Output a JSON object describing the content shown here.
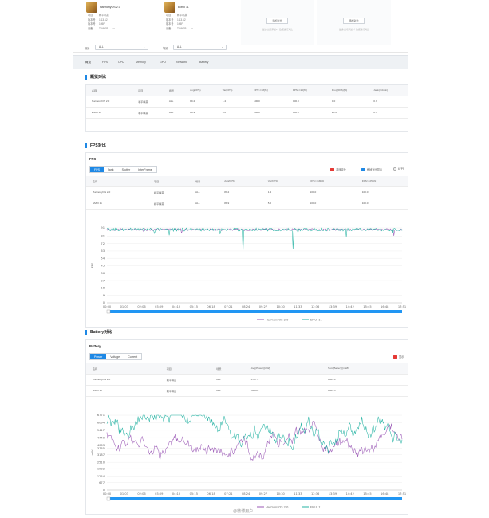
{
  "devices": [
    {
      "name": "HarmonyOS 2.0",
      "rows": [
        [
          "项目",
          "和平精英"
        ],
        [
          "版本号",
          "1.13.12"
        ],
        [
          "版本号",
          "105FI"
        ],
        [
          "设备",
          "T-ANEB"
        ]
      ]
    },
    {
      "name": "EMUI 11",
      "rows": [
        [
          "项目",
          "和平精英"
        ],
        [
          "版本号",
          "1.13.12"
        ],
        [
          "版本号",
          "105FI"
        ],
        [
          "设备",
          "T-ANEB"
        ]
      ]
    }
  ],
  "scene_filter": {
    "label": "场景",
    "value": "ALL"
  },
  "add_slots": [
    {
      "button": "添加对比",
      "hint": "最多支持添加4个数据进行对比"
    },
    {
      "button": "添加对比",
      "hint": "最多支持添加4个数据进行对比"
    }
  ],
  "tabs": [
    "概览",
    "FPS",
    "CPU",
    "Memory",
    "GPU",
    "Network",
    "Battery"
  ],
  "overview": {
    "title": "概览对比",
    "columns": [
      "名称",
      "项目",
      "场景",
      "Avg(FPS)",
      "Var(FPS)",
      "FPS>=18[%]",
      "FPS>=25[%]",
      "Drop(FPS)[%]",
      "Jank(/10min)"
    ],
    "rows": [
      [
        "HarmonyOS 2.0",
        "和平精英",
        "ALL",
        "89.2",
        "1.4",
        "100.0",
        "100.0",
        "0.0",
        "0.3"
      ],
      [
        "EMUI 11",
        "和平精英",
        "ALL",
        "88.9",
        "5.0",
        "100.0",
        "100.0",
        "28.6",
        "0.5"
      ]
    ]
  },
  "fps_section": {
    "title": "FPS对比",
    "subtitle": "FPS",
    "seg": [
      "FPS",
      "Jank",
      "Stutter",
      "InterFrame"
    ],
    "options": [
      "游戏评分",
      "截帧对比显示",
      "6FPS"
    ],
    "columns": [
      "名称",
      "项目",
      "场景",
      "Avg(FPS)",
      "Var(FPS)",
      "FPS>=18[%]",
      "FPS>=25[%]"
    ],
    "rows": [
      [
        "HarmonyOS 2.0",
        "和平精英",
        "ALL",
        "89.2",
        "1.4",
        "100.0",
        "100.0"
      ],
      [
        "EMUI 11",
        "和平精英",
        "ALL",
        "88.9",
        "5.0",
        "100.0",
        "100.0"
      ]
    ]
  },
  "battery_section": {
    "title": "Battery对比",
    "subtitle": "Battery",
    "seg": [
      "Power",
      "Voltage",
      "Current"
    ],
    "option": "显示",
    "columns": [
      "名称",
      "项目",
      "场景",
      "Avg(Power)[mW]",
      "Sum(Battery)[mWh]"
    ],
    "rows": [
      [
        "HarmonyOS 2.0",
        "和平精英",
        "ALL",
        "4727.2",
        "1633.0"
      ],
      [
        "EMUI 11",
        "和平精英",
        "ALL",
        "5369.8",
        "1833.5"
      ]
    ]
  },
  "colors": {
    "harmony": "#9b59b6",
    "emui": "#26b3a3",
    "accent": "#1e88e5"
  },
  "watermark": "@微博用户",
  "chart_data": [
    {
      "type": "line",
      "ylabel": "FPS",
      "yticks": [
        0,
        9,
        18,
        27,
        36,
        45,
        54,
        63,
        72,
        81,
        91
      ],
      "xticks": [
        "00:00",
        "01:03",
        "02:06",
        "03:09",
        "04:12",
        "05:15",
        "06:18",
        "07:21",
        "08:24",
        "09:27",
        "10:30",
        "11:33",
        "12:36",
        "13:39",
        "14:42",
        "15:45",
        "16:48",
        "17:51"
      ],
      "ylim": [
        0,
        91
      ],
      "series": [
        {
          "name": "HarmonyOS 2.0",
          "baseline": 89,
          "noise": 1.2,
          "dips": []
        },
        {
          "name": "EMUI 11",
          "baseline": 89,
          "noise": 1.8,
          "dips": [
            [
              0.46,
              60
            ],
            [
              0.63,
              65
            ],
            [
              0.21,
              82
            ],
            [
              0.81,
              80
            ]
          ]
        }
      ],
      "legend": "bottom"
    },
    {
      "type": "line",
      "ylabel": "mW",
      "yticks": [
        0,
        677,
        1254,
        1932,
        2510,
        3187,
        3765,
        4063,
        4740,
        5417,
        6094,
        6771
      ],
      "xticks": [
        "00:00",
        "01:03",
        "02:06",
        "03:09",
        "04:12",
        "05:15",
        "06:18",
        "07:21",
        "08:24",
        "09:27",
        "10:30",
        "11:33",
        "12:36",
        "13:39",
        "14:42",
        "15:45",
        "16:48",
        "17:51"
      ],
      "ylim": [
        0,
        6771
      ],
      "series": [
        {
          "name": "HarmonyOS 2.0",
          "baseline": 4727,
          "noise": 420
        },
        {
          "name": "EMUI 11",
          "baseline": 5370,
          "noise": 520
        }
      ],
      "legend": "bottom"
    }
  ]
}
